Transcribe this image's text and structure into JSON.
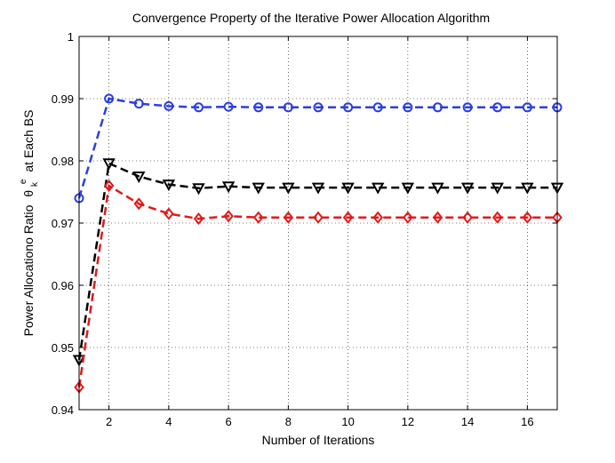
{
  "chart_data": {
    "type": "line",
    "title": "Convergence Property of the Iterative Power Allocation Algorithm",
    "xlabel": "Number of Iterations",
    "ylabel_prefix": "Power Allocationo Ratio",
    "ylabel_symbol": "θ",
    "ylabel_sub": "k",
    "ylabel_sup": "e",
    "ylabel_suffix": "at Each BS",
    "xlim": [
      1,
      17
    ],
    "ylim": [
      0.94,
      1.0
    ],
    "xticks": [
      2,
      4,
      6,
      8,
      10,
      12,
      14,
      16
    ],
    "yticks": [
      0.94,
      0.95,
      0.96,
      0.97,
      0.98,
      0.99,
      1.0
    ],
    "ytick_labels": [
      "0.94",
      "0.95",
      "0.96",
      "0.97",
      "0.98",
      "0.99",
      "1"
    ],
    "grid": true,
    "x": [
      1,
      2,
      3,
      4,
      5,
      6,
      7,
      8,
      9,
      10,
      11,
      12,
      13,
      14,
      15,
      16,
      17
    ],
    "series": [
      {
        "name": "blue-circle-series",
        "color": "#2b3fe0",
        "marker": "circle",
        "values": [
          0.974,
          0.99,
          0.9892,
          0.9888,
          0.9886,
          0.9887,
          0.9886,
          0.9886,
          0.9886,
          0.9886,
          0.9886,
          0.9886,
          0.9886,
          0.9886,
          0.9886,
          0.9886,
          0.9886
        ]
      },
      {
        "name": "black-triangle-series",
        "color": "#000000",
        "marker": "triangle-down",
        "values": [
          0.948,
          0.9796,
          0.9775,
          0.9762,
          0.9756,
          0.9759,
          0.9757,
          0.9757,
          0.9757,
          0.9757,
          0.9757,
          0.9757,
          0.9757,
          0.9757,
          0.9757,
          0.9757,
          0.9757
        ]
      },
      {
        "name": "red-diamond-series",
        "color": "#e01a1a",
        "marker": "diamond",
        "values": [
          0.9436,
          0.976,
          0.9731,
          0.9715,
          0.9707,
          0.9711,
          0.9709,
          0.9709,
          0.9709,
          0.9709,
          0.9709,
          0.9709,
          0.9709,
          0.9709,
          0.9709,
          0.9709,
          0.9709
        ]
      }
    ]
  }
}
